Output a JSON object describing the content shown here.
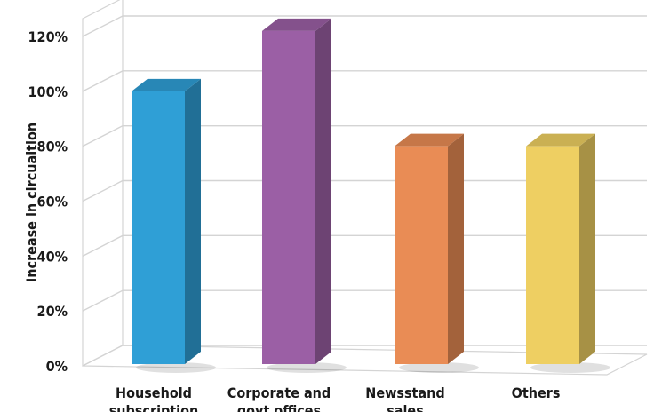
{
  "chart_data": {
    "type": "bar",
    "categories": [
      [
        "Household",
        "subscription"
      ],
      [
        "Corporate and",
        "govt offices"
      ],
      [
        "Newsstand",
        "sales"
      ],
      [
        "Others"
      ]
    ],
    "values": [
      100,
      122,
      80,
      80
    ],
    "ylabel": "Increase in circualtion",
    "yticks": [
      "0%",
      "20%",
      "40%",
      "60%",
      "80%",
      "100%",
      "120%"
    ],
    "ylim": [
      0,
      120
    ],
    "grid": true,
    "colors": {
      "bars": [
        "#2f9fd6",
        "#9b5fa5",
        "#e98c55",
        "#eecf62"
      ],
      "grid": "#d4d4d4"
    }
  }
}
